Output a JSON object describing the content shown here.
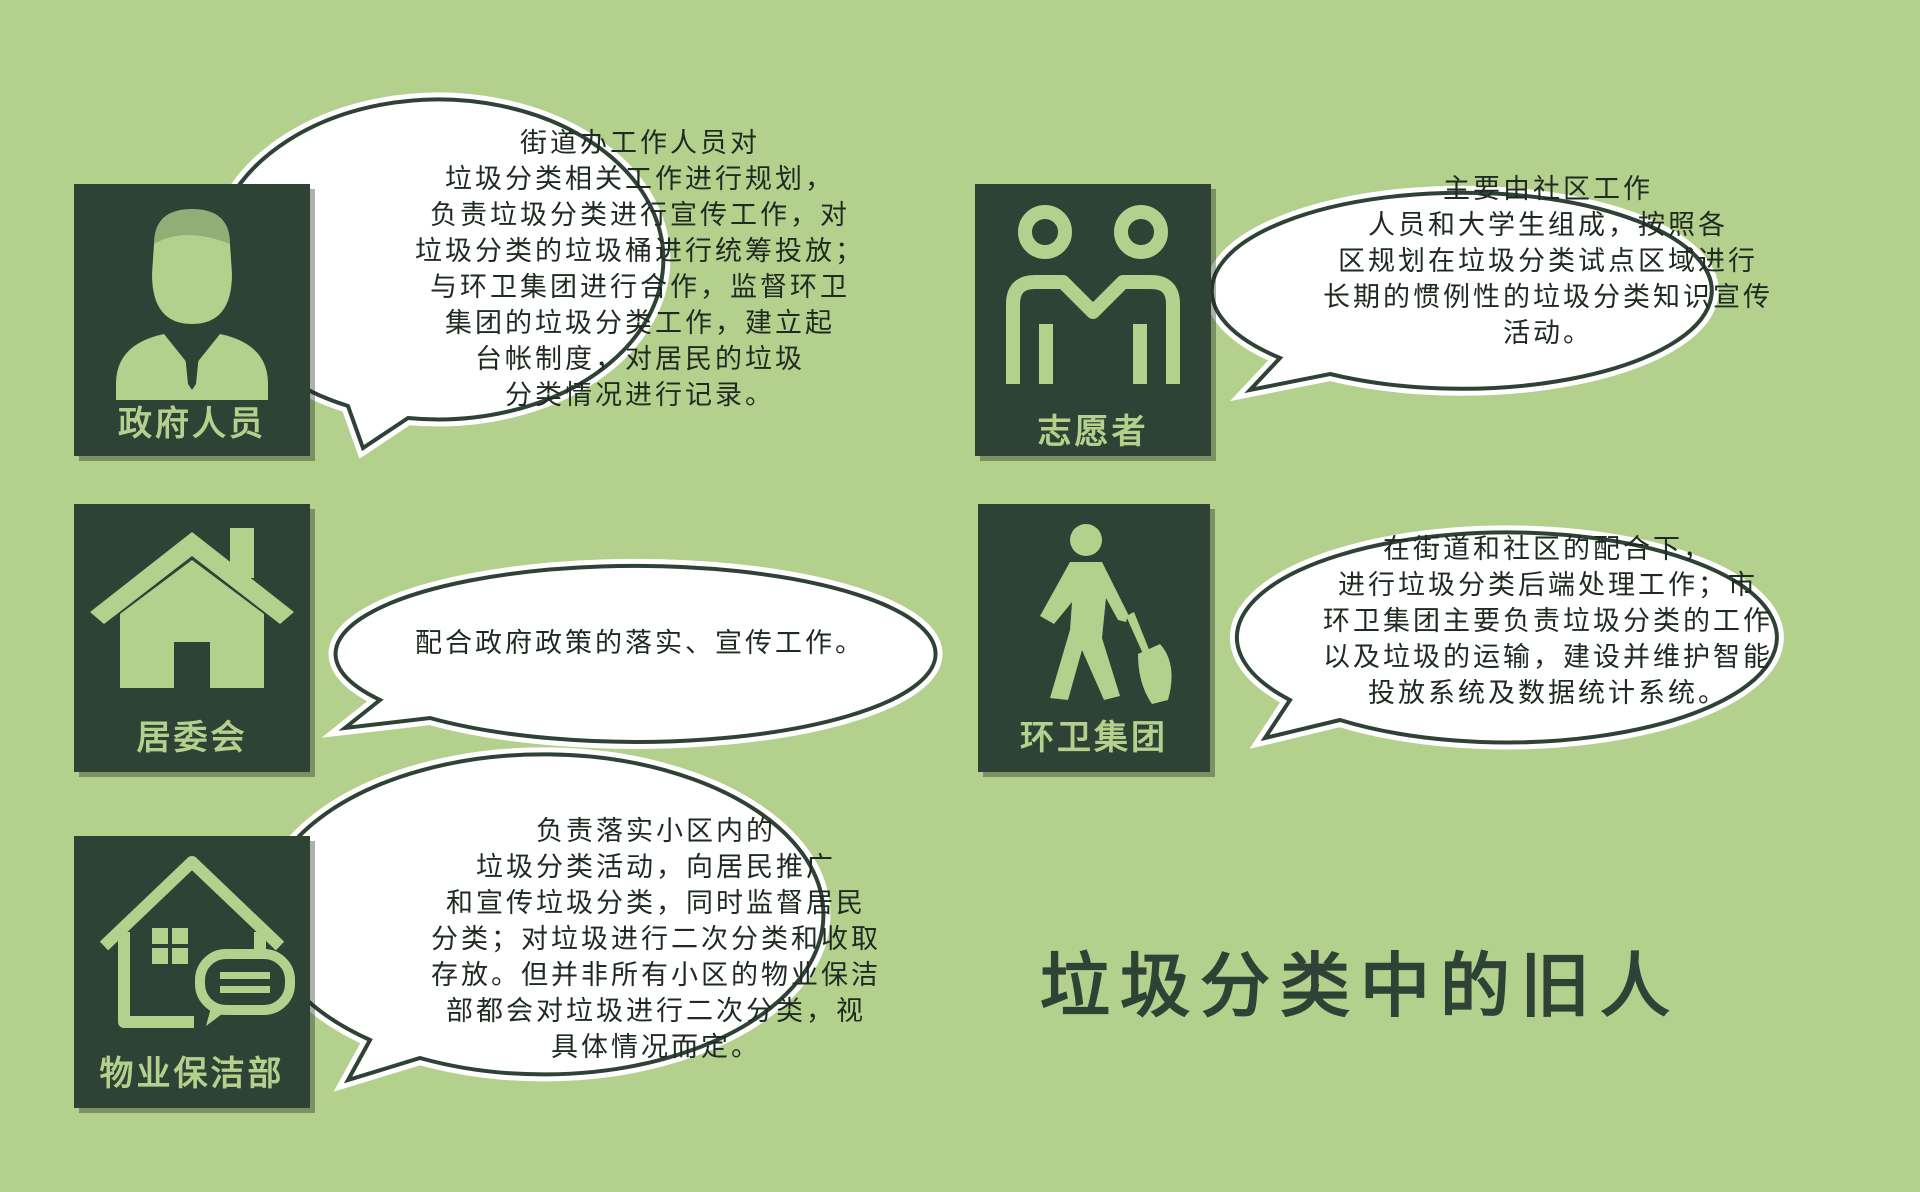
{
  "cards": [
    {
      "label": "政府人员",
      "icon": "official-person-icon"
    },
    {
      "label": "志愿者",
      "icon": "volunteers-icon"
    },
    {
      "label": "居委会",
      "icon": "house-icon"
    },
    {
      "label": "环卫集团",
      "icon": "sanitation-worker-icon"
    },
    {
      "label": "物业保洁部",
      "icon": "house-with-message-icon"
    }
  ],
  "bubbles": [
    {
      "lines": [
        "街道办工作人员对",
        "垃圾分类相关工作进行规划，",
        "负责垃圾分类进行宣传工作，对",
        "垃圾分类的垃圾桶进行统筹投放；",
        "与环卫集团进行合作，监督环卫",
        "集团的垃圾分类工作，建立起",
        "台帐制度，对居民的垃圾",
        "分类情况进行记录。"
      ]
    },
    {
      "lines": [
        "主要由社区工作",
        "人员和大学生组成，按照各",
        "区规划在垃圾分类试点区域进行",
        "长期的惯例性的垃圾分类知识宣传",
        "活动。"
      ]
    },
    {
      "lines": [
        "配合政府政策的落实、宣传工作。"
      ]
    },
    {
      "lines": [
        "在街道和社区的配合下，",
        "进行垃圾分类后端处理工作；市",
        "环卫集团主要负责垃圾分类的工作",
        "以及垃圾的运输，建设并维护智能",
        "投放系统及数据统计系统。"
      ]
    },
    {
      "lines": [
        "负责落实小区内的",
        "垃圾分类活动，向居民推广",
        "和宣传垃圾分类，同时监督居民",
        "分类；对垃圾进行二次分类和收取",
        "存放。但并非所有小区的物业保洁",
        "部都会对垃圾进行二次分类，视",
        "具体情况而定。"
      ]
    }
  ],
  "title": "垃圾分类中的旧人",
  "colors": {
    "background": "#b4d08d",
    "card": "#2f4236",
    "icon": "#b4d08d",
    "bubble": "#ffffff",
    "bubble_border": "#2f4236"
  }
}
